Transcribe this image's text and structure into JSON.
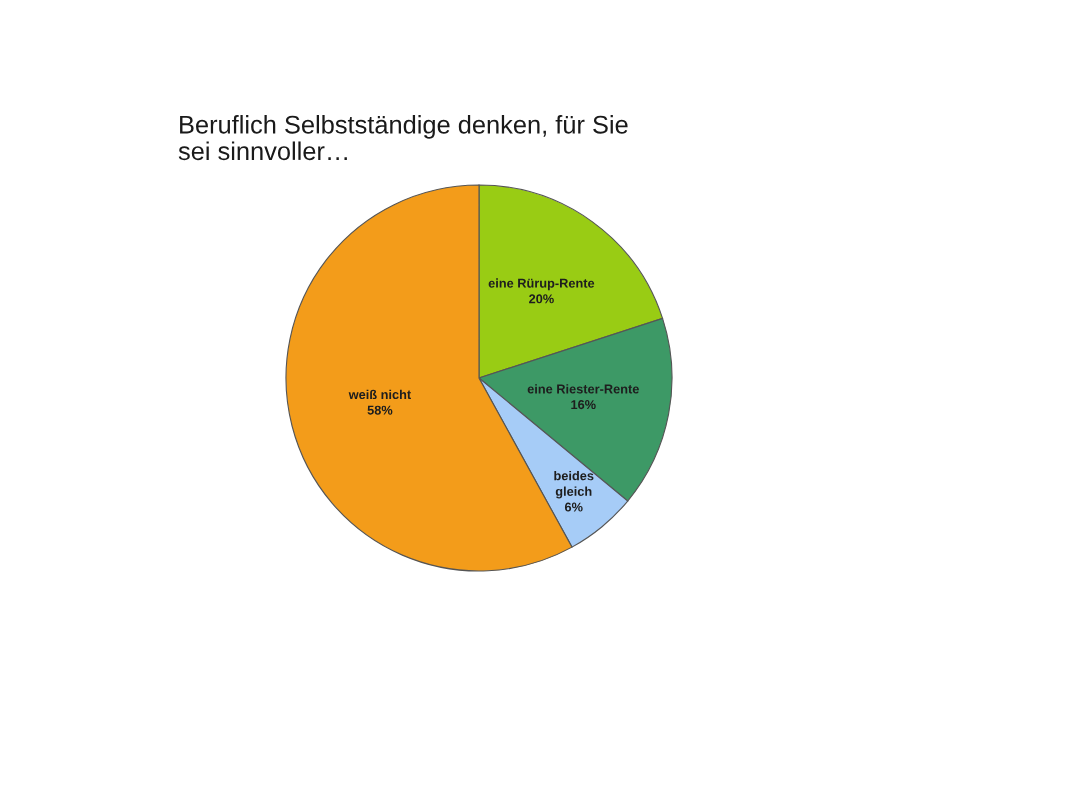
{
  "chart_data": {
    "type": "pie",
    "title": "Beruflich Selbstständige denken, für Sie sei sinnvoller…",
    "categories": [
      "eine Rürup-Rente",
      "eine Riester-Rente",
      "beides gleich",
      "weiß nicht"
    ],
    "values": [
      20,
      16,
      6,
      58
    ],
    "colors": [
      "#99cc14",
      "#3d9966",
      "#a6ccf7",
      "#f39c1a"
    ],
    "value_labels": [
      "20%",
      "16%",
      "6%",
      "58%"
    ]
  }
}
